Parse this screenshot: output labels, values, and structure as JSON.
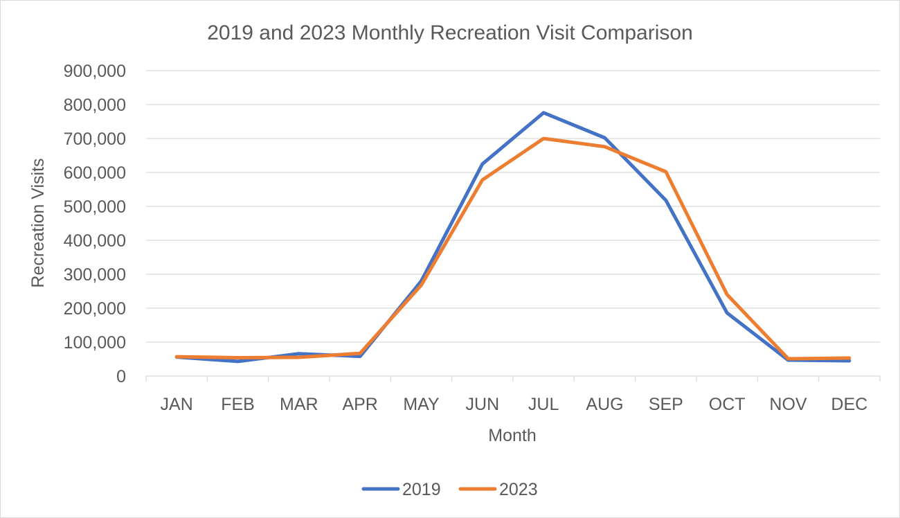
{
  "chart_data": {
    "type": "line",
    "title": "2019 and 2023 Monthly Recreation Visit Comparison",
    "xlabel": "Month",
    "ylabel": "Recreation Visits",
    "categories": [
      "JAN",
      "FEB",
      "MAR",
      "APR",
      "MAY",
      "JUN",
      "JUL",
      "AUG",
      "SEP",
      "OCT",
      "NOV",
      "DEC"
    ],
    "ylim": [
      0,
      900000
    ],
    "yticks": [
      0,
      100000,
      200000,
      300000,
      400000,
      500000,
      600000,
      700000,
      800000,
      900000
    ],
    "ytick_labels": [
      "0",
      "100,000",
      "200,000",
      "300,000",
      "400,000",
      "500,000",
      "600,000",
      "700,000",
      "800,000",
      "900,000"
    ],
    "grid": true,
    "legend_position": "bottom",
    "series": [
      {
        "name": "2019",
        "color": "#4472C4",
        "values": [
          56000,
          43000,
          66000,
          58000,
          280000,
          625000,
          776000,
          702000,
          518000,
          186000,
          47000,
          45000
        ]
      },
      {
        "name": "2023",
        "color": "#ED7D31",
        "values": [
          57000,
          54000,
          55000,
          67000,
          268000,
          578000,
          700000,
          676000,
          602000,
          240000,
          51000,
          53000
        ]
      }
    ]
  }
}
